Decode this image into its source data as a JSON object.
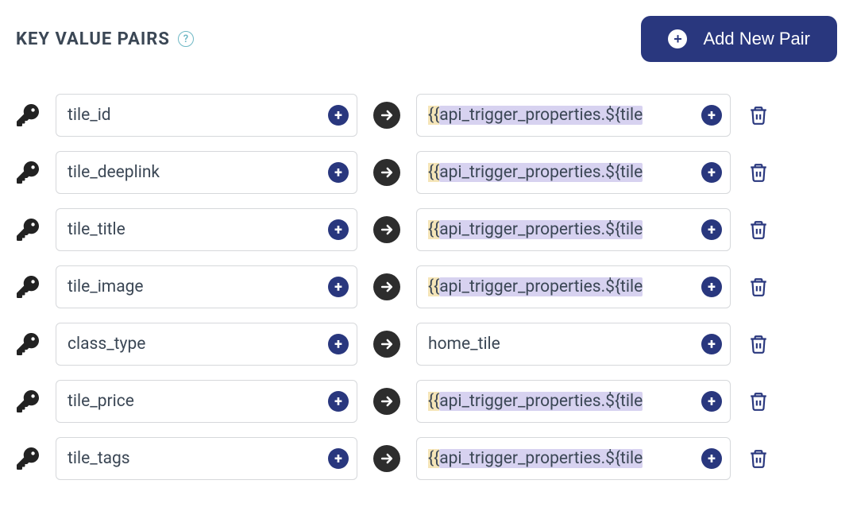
{
  "header": {
    "title": "KEY VALUE PAIRS",
    "help_icon_label": "?",
    "add_button_label": "Add New Pair"
  },
  "colors": {
    "primary": "#29377e",
    "title_text": "#3b4755",
    "border": "#d6d8db",
    "highlight_bg": "#d7d2f0",
    "highlight_brace_bg": "#f5e5b8",
    "arrow_bg": "#2d2d2d",
    "help_border": "#6eb8c5"
  },
  "pairs": [
    {
      "key": "tile_id",
      "value": "{{api_trigger_properties.${tile",
      "value_is_template": true
    },
    {
      "key": "tile_deeplink",
      "value": "{{api_trigger_properties.${tile",
      "value_is_template": true
    },
    {
      "key": "tile_title",
      "value": "{{api_trigger_properties.${tile",
      "value_is_template": true
    },
    {
      "key": "tile_image",
      "value": "{{api_trigger_properties.${tile",
      "value_is_template": true
    },
    {
      "key": "class_type",
      "value": "home_tile",
      "value_is_template": false
    },
    {
      "key": "tile_price",
      "value": "{{api_trigger_properties.${tile",
      "value_is_template": true
    },
    {
      "key": "tile_tags",
      "value": "{{api_trigger_properties.${tile",
      "value_is_template": true
    }
  ]
}
